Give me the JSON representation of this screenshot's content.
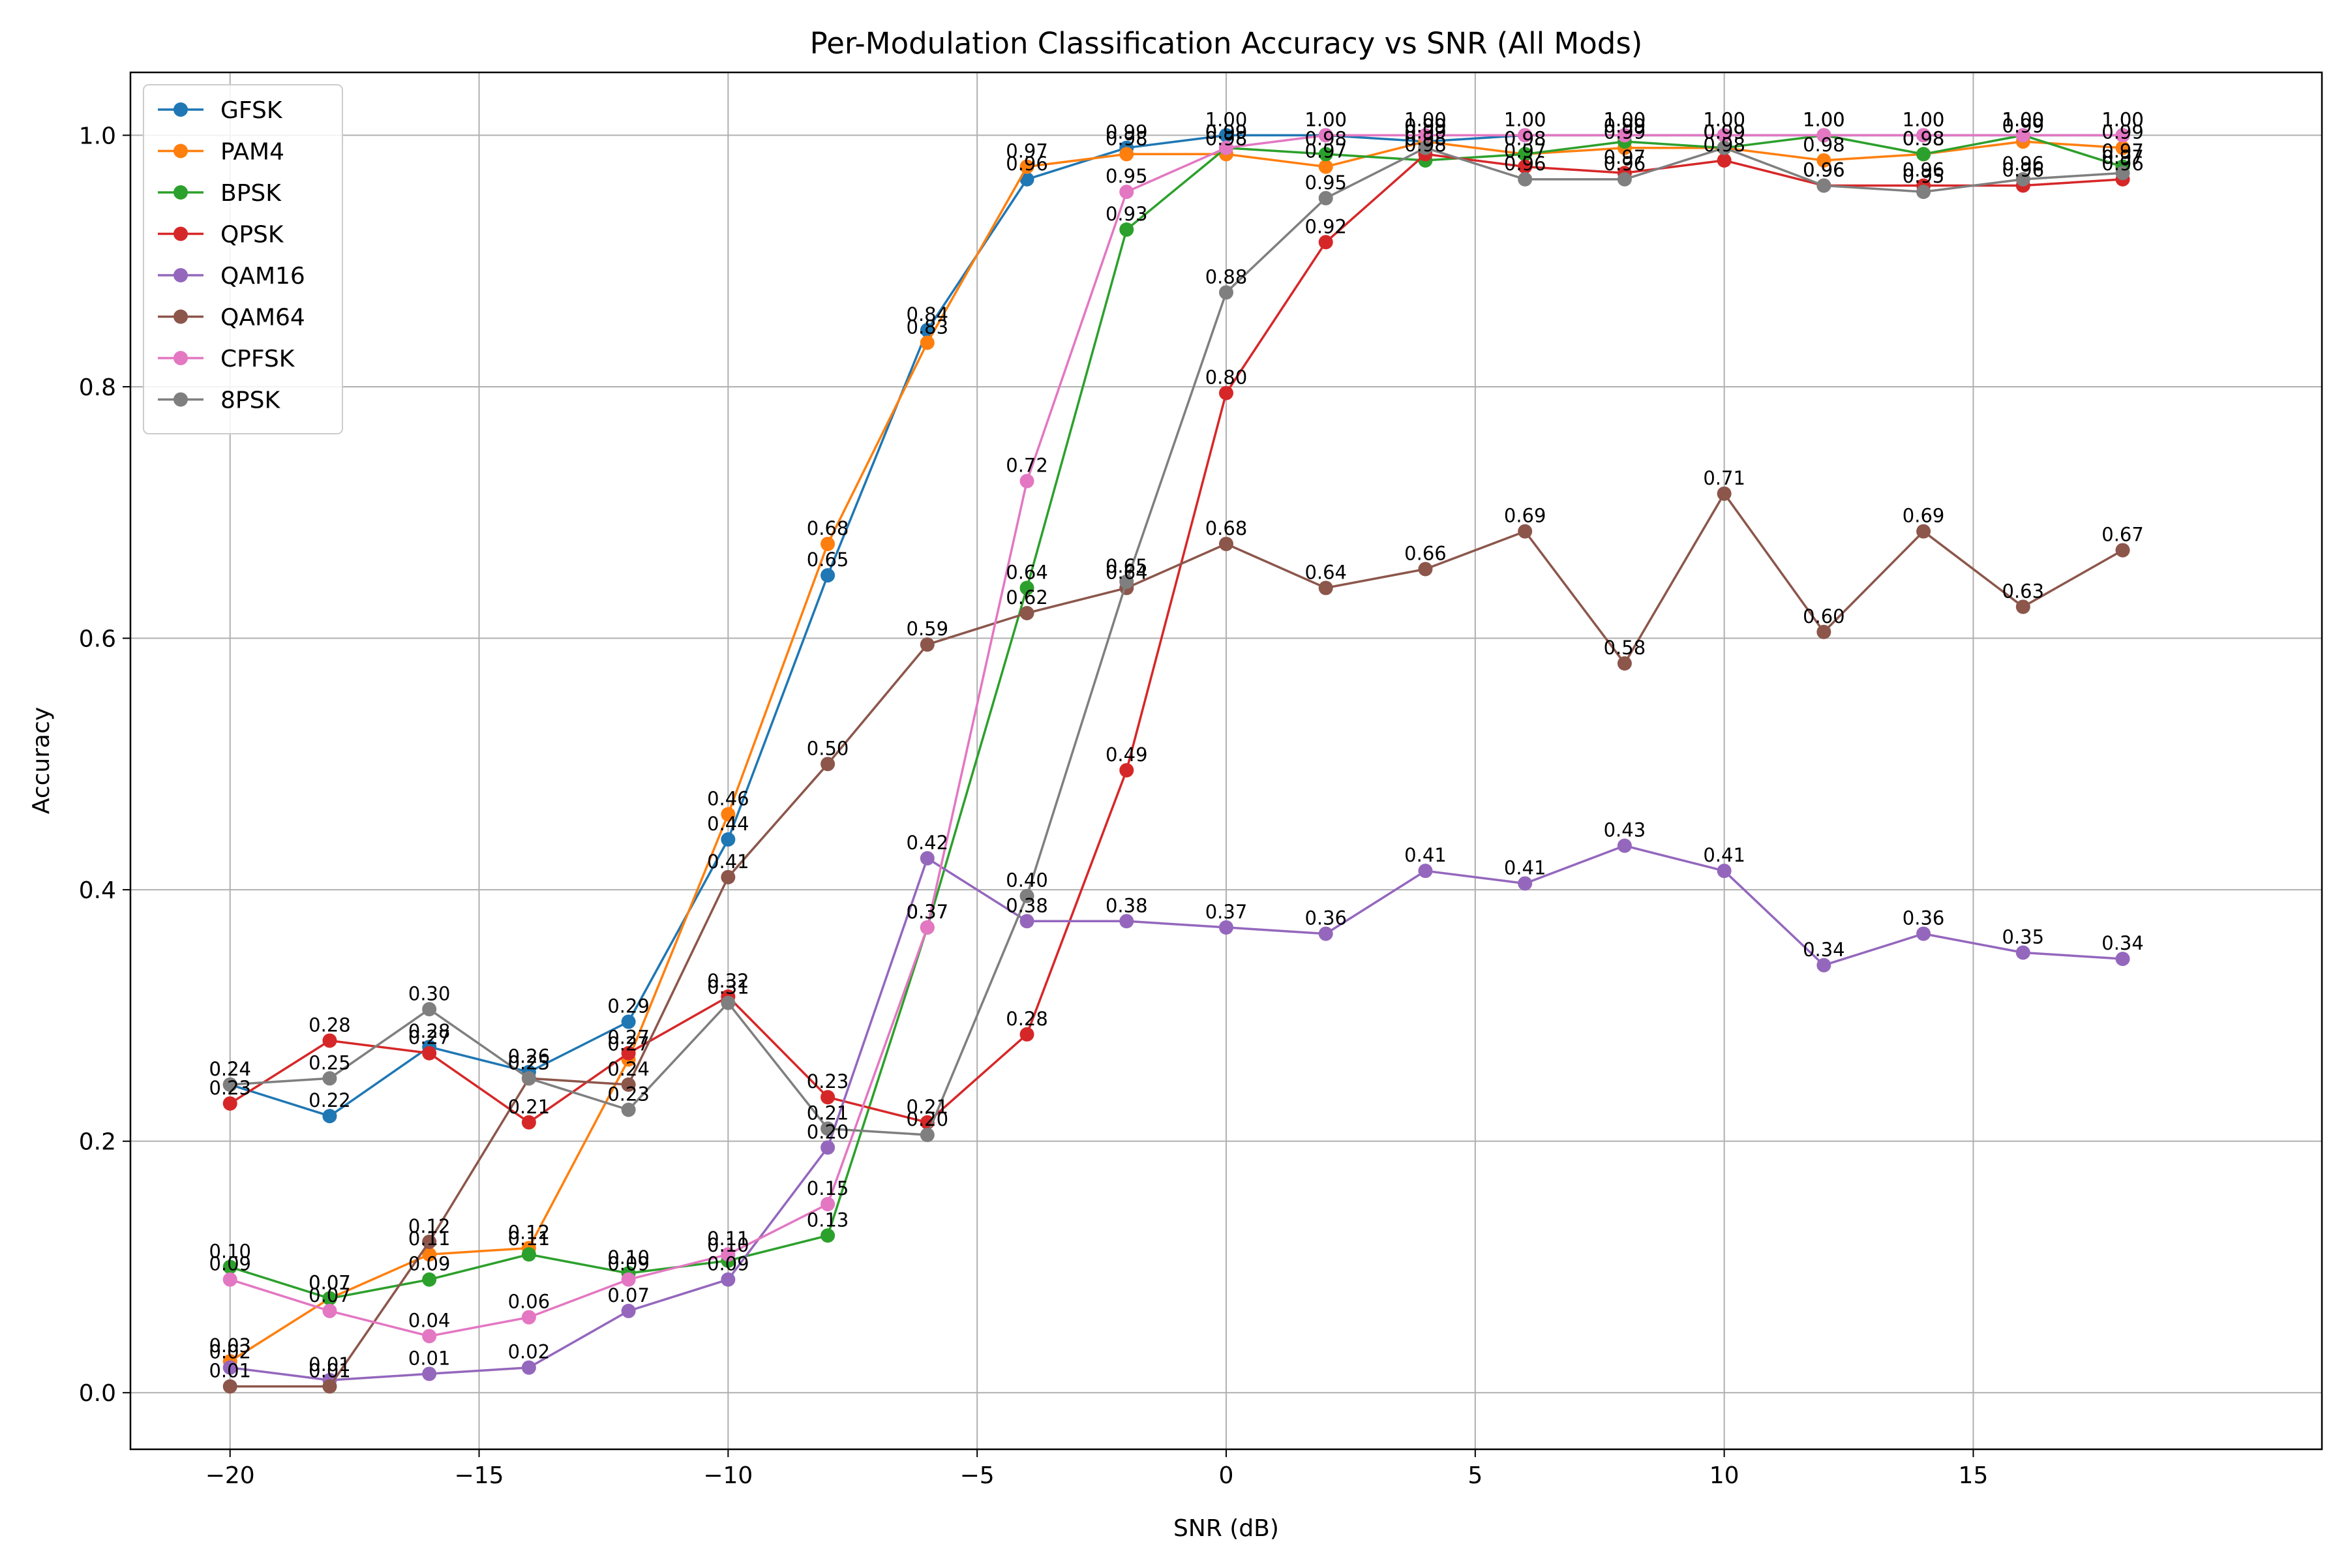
{
  "chart_data": {
    "type": "line",
    "title": "Per-Modulation Classification Accuracy vs SNR (All Mods)",
    "xlabel": "SNR (dB)",
    "ylabel": "Accuracy",
    "xlim": [
      -22,
      22
    ],
    "ylim": [
      -0.045,
      1.05
    ],
    "xticks": [
      -20,
      -15,
      -10,
      -5,
      0,
      5,
      10,
      15
    ],
    "xtick_labels": [
      "−20",
      "−15",
      "−10",
      "−5",
      "0",
      "5",
      "10",
      "15"
    ],
    "yticks": [
      0.0,
      0.2,
      0.4,
      0.6,
      0.8,
      1.0
    ],
    "ytick_labels": [
      "0.0",
      "0.2",
      "0.4",
      "0.6",
      "0.8",
      "1.0"
    ],
    "grid": true,
    "legend_position": "top-left",
    "marker": "circle",
    "x": [
      -20,
      -18,
      -16,
      -14,
      -12,
      -10,
      -8,
      -6,
      -4,
      -2,
      0,
      2,
      4,
      6,
      8,
      10,
      12,
      14,
      16,
      18
    ],
    "series": [
      {
        "name": "GFSK",
        "color": "#1f77b4",
        "values": [
          0.245,
          0.22,
          0.275,
          0.255,
          0.295,
          0.44,
          0.65,
          0.845,
          0.965,
          0.99,
          1.0,
          1.0,
          0.995,
          1.0,
          1.0,
          1.0,
          1.0,
          1.0,
          1.0,
          1.0
        ]
      },
      {
        "name": "PAM4",
        "color": "#ff7f0e",
        "values": [
          0.025,
          0.075,
          0.11,
          0.115,
          0.265,
          0.46,
          0.675,
          0.835,
          0.975,
          0.985,
          0.985,
          0.975,
          0.995,
          0.985,
          0.99,
          0.99,
          0.98,
          0.985,
          0.995,
          0.99
        ]
      },
      {
        "name": "BPSK",
        "color": "#2ca02c",
        "values": [
          0.1,
          0.075,
          0.09,
          0.11,
          0.095,
          0.105,
          0.125,
          0.37,
          0.64,
          0.925,
          0.99,
          0.985,
          0.98,
          0.985,
          0.995,
          0.99,
          1.0,
          0.985,
          1.0,
          0.975
        ]
      },
      {
        "name": "QPSK",
        "color": "#d62728",
        "values": [
          0.23,
          0.28,
          0.27,
          0.215,
          0.27,
          0.315,
          0.235,
          0.215,
          0.285,
          0.495,
          0.795,
          0.915,
          0.985,
          0.975,
          0.97,
          0.98,
          0.96,
          0.96,
          0.96,
          0.965
        ]
      },
      {
        "name": "QAM16",
        "color": "#9467bd",
        "values": [
          0.02,
          0.01,
          0.015,
          0.02,
          0.065,
          0.09,
          0.195,
          0.425,
          0.375,
          0.375,
          0.37,
          0.365,
          0.415,
          0.405,
          0.435,
          0.415,
          0.34,
          0.365,
          0.35,
          0.345
        ]
      },
      {
        "name": "QAM64",
        "color": "#8c564b",
        "values": [
          0.005,
          0.005,
          0.12,
          0.25,
          0.245,
          0.41,
          0.5,
          0.595,
          0.62,
          0.64,
          0.675,
          0.64,
          0.655,
          0.685,
          0.58,
          0.715,
          0.605,
          0.685,
          0.625,
          0.67
        ]
      },
      {
        "name": "CPFSK",
        "color": "#e377c2",
        "values": [
          0.09,
          0.065,
          0.045,
          0.06,
          0.09,
          0.11,
          0.15,
          0.37,
          0.725,
          0.955,
          0.99,
          1.0,
          1.0,
          1.0,
          1.0,
          1.0,
          1.0,
          1.0,
          1.0,
          1.0
        ]
      },
      {
        "name": "8PSK",
        "color": "#7f7f7f",
        "values": [
          0.245,
          0.25,
          0.305,
          0.25,
          0.225,
          0.31,
          0.21,
          0.205,
          0.395,
          0.645,
          0.875,
          0.95,
          0.99,
          0.965,
          0.965,
          0.99,
          0.96,
          0.955,
          0.965,
          0.97
        ]
      }
    ]
  }
}
